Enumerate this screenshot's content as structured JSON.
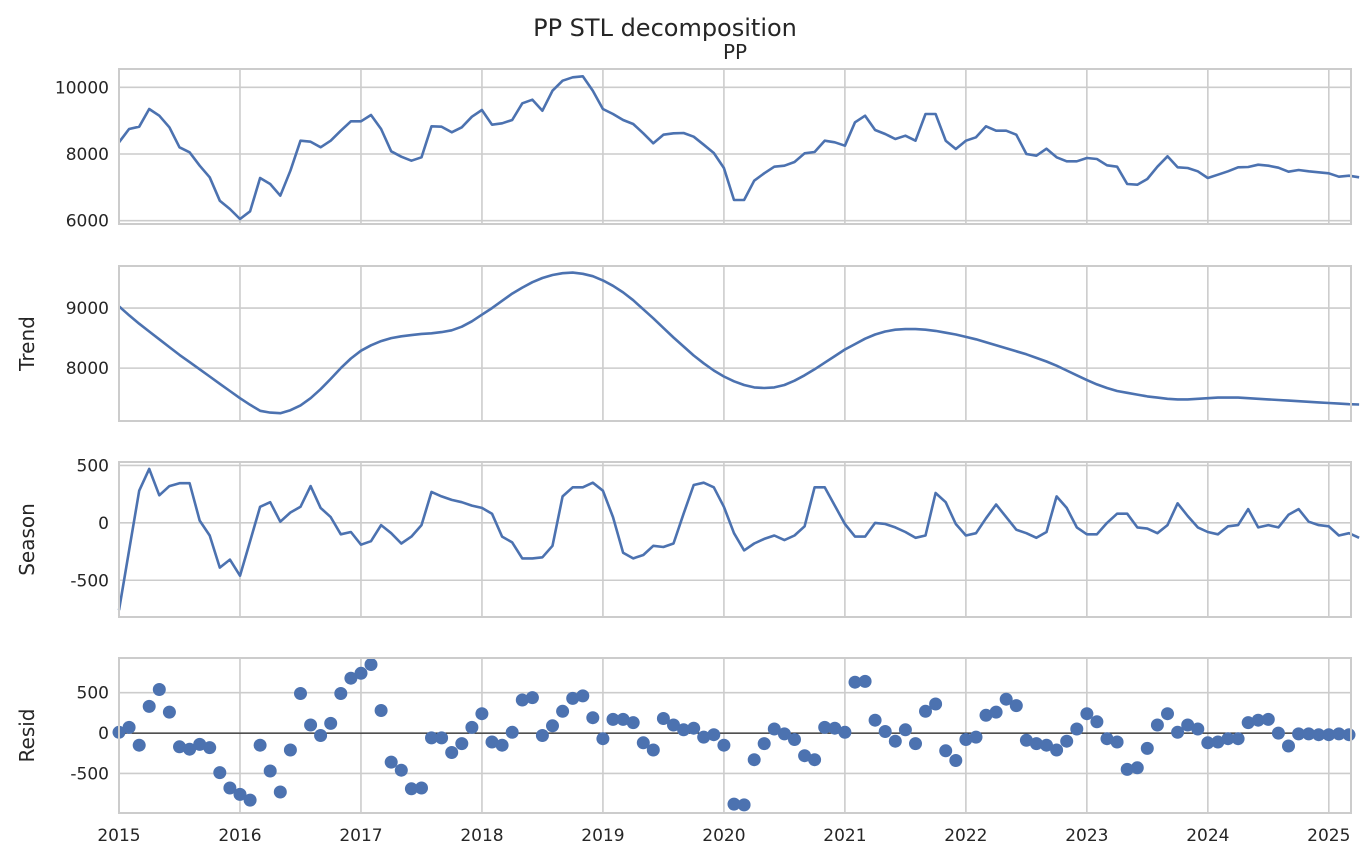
{
  "figure": {
    "title": "PP STL decomposition",
    "x_ticks": [
      "2015",
      "2016",
      "2017",
      "2018",
      "2019",
      "2020",
      "2021",
      "2022",
      "2023",
      "2024",
      "2025"
    ]
  },
  "colors": {
    "line": "#4c72b0",
    "grid": "#cccccc",
    "axes_edge": "#cccccc",
    "resid_zero": "#000000"
  },
  "chart_data": [
    {
      "type": "line",
      "title": "PP",
      "ylabel": "",
      "x_start": "2015-01",
      "frequency": "monthly",
      "ylim": [
        5900,
        10550
      ],
      "yticks": [
        6000,
        8000,
        10000
      ],
      "grid": true,
      "values": [
        8350,
        8750,
        8820,
        9350,
        9150,
        8800,
        8200,
        8050,
        7650,
        7300,
        6600,
        6350,
        6050,
        6280,
        7280,
        7100,
        6750,
        7500,
        8400,
        8370,
        8200,
        8400,
        8700,
        8980,
        8980,
        9170,
        8750,
        8080,
        7920,
        7800,
        7900,
        8830,
        8820,
        8650,
        8800,
        9120,
        9320,
        8880,
        8920,
        9020,
        9520,
        9630,
        9300,
        9900,
        10200,
        10300,
        10330,
        9900,
        9350,
        9200,
        9020,
        8900,
        8620,
        8320,
        8580,
        8620,
        8630,
        8520,
        8280,
        8030,
        7580,
        6620,
        6620,
        7200,
        7420,
        7620,
        7650,
        7760,
        8020,
        8060,
        8400,
        8350,
        8250,
        8950,
        9150,
        8720,
        8600,
        8450,
        8550,
        8400,
        9200,
        9200,
        8400,
        8150,
        8400,
        8500,
        8830,
        8700,
        8700,
        8580,
        8000,
        7950,
        8160,
        7900,
        7780,
        7780,
        7880,
        7850,
        7660,
        7620,
        7100,
        7080,
        7250,
        7620,
        7930,
        7600,
        7580,
        7480,
        7280,
        7380,
        7480,
        7600,
        7610,
        7680,
        7650,
        7590,
        7470,
        7520,
        7480,
        7450,
        7420,
        7320,
        7350,
        7300
      ]
    },
    {
      "type": "line",
      "title": "",
      "ylabel": "Trend",
      "x_start": "2015-01",
      "frequency": "monthly",
      "ylim": [
        7120,
        9700
      ],
      "yticks": [
        8000,
        9000
      ],
      "grid": true,
      "values": [
        9030,
        8880,
        8740,
        8610,
        8480,
        8350,
        8220,
        8100,
        7980,
        7860,
        7740,
        7620,
        7500,
        7390,
        7290,
        7260,
        7250,
        7300,
        7380,
        7500,
        7650,
        7820,
        8000,
        8160,
        8290,
        8380,
        8450,
        8500,
        8530,
        8550,
        8570,
        8580,
        8600,
        8630,
        8690,
        8780,
        8890,
        9000,
        9120,
        9240,
        9340,
        9430,
        9500,
        9550,
        9580,
        9590,
        9570,
        9530,
        9460,
        9370,
        9260,
        9130,
        8980,
        8830,
        8670,
        8510,
        8360,
        8210,
        8080,
        7960,
        7860,
        7780,
        7720,
        7680,
        7670,
        7680,
        7720,
        7790,
        7880,
        7980,
        8090,
        8200,
        8310,
        8400,
        8490,
        8560,
        8610,
        8640,
        8650,
        8650,
        8640,
        8620,
        8590,
        8560,
        8520,
        8480,
        8430,
        8380,
        8330,
        8280,
        8230,
        8170,
        8110,
        8040,
        7960,
        7880,
        7800,
        7730,
        7670,
        7620,
        7590,
        7560,
        7530,
        7510,
        7490,
        7480,
        7480,
        7490,
        7500,
        7510,
        7510,
        7510,
        7500,
        7490,
        7480,
        7470,
        7460,
        7450,
        7440,
        7430,
        7420,
        7410,
        7400,
        7395
      ]
    },
    {
      "type": "line",
      "title": "",
      "ylabel": "Season",
      "x_start": "2015-01",
      "frequency": "monthly",
      "ylim": [
        -820,
        530
      ],
      "yticks": [
        -500,
        0,
        500
      ],
      "grid": true,
      "values": [
        -760,
        -240,
        280,
        470,
        240,
        320,
        345,
        345,
        20,
        -110,
        -390,
        -320,
        -460,
        -160,
        140,
        180,
        10,
        90,
        140,
        320,
        130,
        50,
        -100,
        -80,
        -190,
        -160,
        -20,
        -90,
        -180,
        -120,
        -20,
        270,
        230,
        200,
        180,
        150,
        130,
        80,
        -120,
        -170,
        -310,
        -310,
        -300,
        -200,
        230,
        310,
        310,
        350,
        280,
        50,
        -260,
        -310,
        -280,
        -200,
        -210,
        -180,
        80,
        330,
        350,
        310,
        140,
        -90,
        -240,
        -180,
        -140,
        -110,
        -150,
        -110,
        -30,
        310,
        310,
        150,
        -10,
        -120,
        -120,
        0,
        -10,
        -40,
        -80,
        -130,
        -110,
        260,
        180,
        -10,
        -110,
        -90,
        40,
        160,
        50,
        -60,
        -90,
        -130,
        -80,
        230,
        130,
        -40,
        -100,
        -100,
        0,
        80,
        80,
        -40,
        -50,
        -90,
        -20,
        170,
        60,
        -40,
        -80,
        -100,
        -30,
        -20,
        120,
        -40,
        -20,
        -40,
        70,
        120,
        10,
        -20,
        -30,
        -110,
        -90,
        -130
      ]
    },
    {
      "type": "scatter",
      "title": "",
      "ylabel": "Resid",
      "x_start": "2015-01",
      "frequency": "monthly",
      "ylim": [
        -990,
        930
      ],
      "yticks": [
        -500,
        0,
        500
      ],
      "grid": true,
      "zero_line": true,
      "values": [
        10,
        70,
        -150,
        330,
        540,
        260,
        -170,
        -200,
        -140,
        -180,
        -490,
        -680,
        -760,
        -830,
        -150,
        -470,
        -730,
        -210,
        490,
        100,
        -30,
        120,
        490,
        680,
        740,
        850,
        280,
        -360,
        -460,
        -690,
        -680,
        -60,
        -60,
        -240,
        -130,
        70,
        240,
        -110,
        -150,
        10,
        410,
        440,
        -30,
        90,
        270,
        430,
        460,
        190,
        -70,
        170,
        170,
        130,
        -120,
        -210,
        180,
        100,
        40,
        60,
        -50,
        -20,
        -150,
        -880,
        -890,
        -330,
        -130,
        50,
        -10,
        -80,
        -280,
        -330,
        70,
        60,
        10,
        630,
        640,
        160,
        20,
        -100,
        40,
        -130,
        270,
        360,
        -220,
        -340,
        -80,
        -50,
        220,
        260,
        420,
        340,
        -90,
        -130,
        -150,
        -210,
        -100,
        50,
        240,
        140,
        -70,
        -110,
        -450,
        -430,
        -190,
        100,
        240,
        10,
        100,
        50,
        -120,
        -110,
        -70,
        -70,
        130,
        160,
        170,
        0,
        -160,
        -10,
        -10,
        -20,
        -20,
        -10,
        -20
      ]
    }
  ]
}
